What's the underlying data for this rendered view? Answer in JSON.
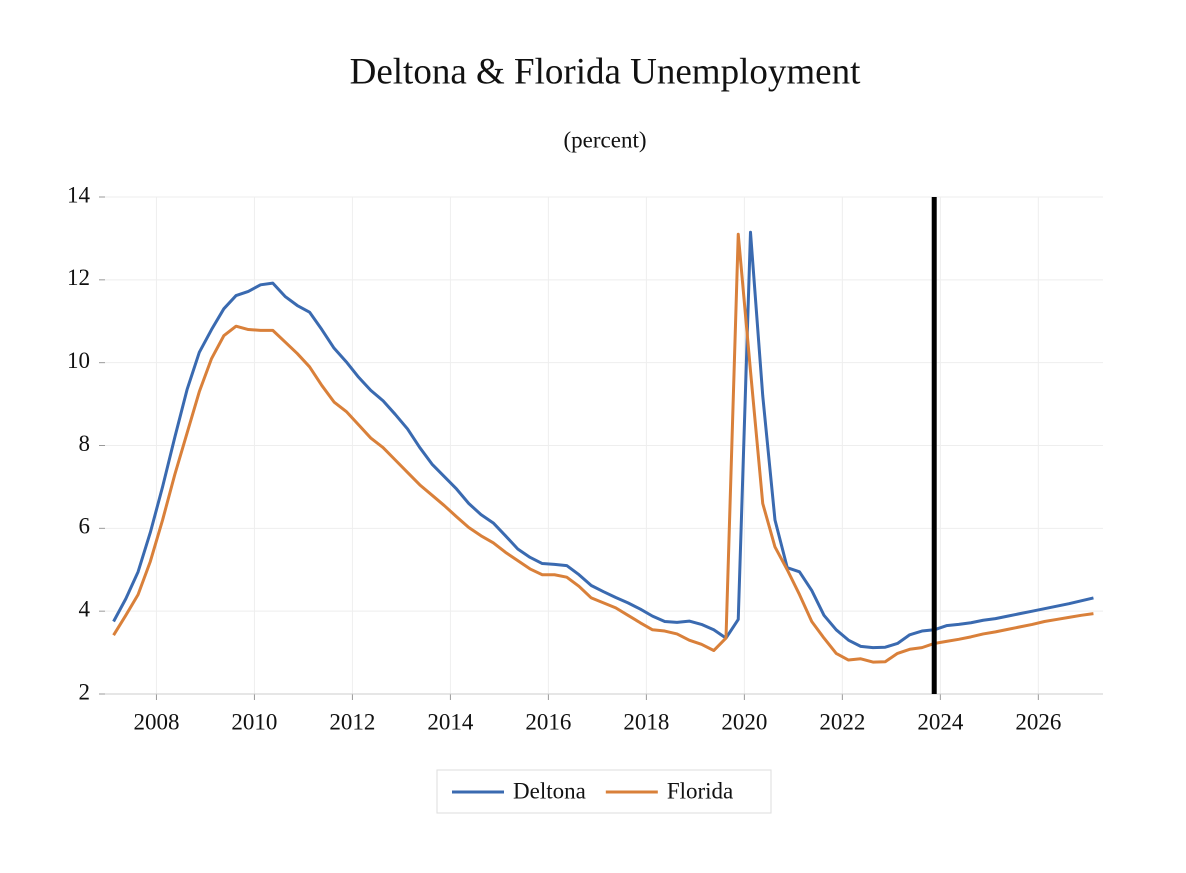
{
  "chart_data": {
    "type": "line",
    "title": "Deltona & Florida Unemployment",
    "subtitle": "(percent)",
    "x": [
      2007.625,
      2007.875,
      2008.125,
      2008.375,
      2008.625,
      2008.875,
      2009.125,
      2009.375,
      2009.625,
      2009.875,
      2010.125,
      2010.375,
      2010.625,
      2010.875,
      2011.125,
      2011.375,
      2011.625,
      2011.875,
      2012.125,
      2012.375,
      2012.625,
      2012.875,
      2013.125,
      2013.375,
      2013.625,
      2013.875,
      2014.125,
      2014.375,
      2014.625,
      2014.875,
      2015.125,
      2015.375,
      2015.625,
      2015.875,
      2016.125,
      2016.375,
      2016.625,
      2016.875,
      2017.125,
      2017.375,
      2017.625,
      2017.875,
      2018.125,
      2018.375,
      2018.625,
      2018.875,
      2019.125,
      2019.375,
      2019.625,
      2019.875,
      2020.125,
      2020.375,
      2020.625,
      2020.875,
      2021.125,
      2021.375,
      2021.625,
      2021.875,
      2022.125,
      2022.375,
      2022.625,
      2022.875,
      2023.125,
      2023.375,
      2023.625,
      2023.875,
      2024.125,
      2024.375,
      2024.625,
      2024.875,
      2025.125,
      2025.375,
      2025.625,
      2025.875,
      2026.125,
      2026.375,
      2026.625,
      2026.875,
      2027.125,
      2027.375,
      2027.625
    ],
    "series": [
      {
        "name": "Deltona",
        "color": "#3a6ab0",
        "values": [
          3.75,
          4.3,
          4.95,
          5.9,
          7.0,
          8.2,
          9.35,
          10.25,
          10.8,
          11.3,
          11.62,
          11.72,
          11.88,
          11.92,
          11.6,
          11.38,
          11.22,
          10.8,
          10.35,
          10.02,
          9.65,
          9.33,
          9.08,
          8.75,
          8.4,
          7.95,
          7.55,
          7.25,
          6.95,
          6.6,
          6.33,
          6.13,
          5.82,
          5.5,
          5.3,
          5.15,
          5.13,
          5.1,
          4.88,
          4.62,
          4.47,
          4.33,
          4.2,
          4.05,
          3.88,
          3.75,
          3.73,
          3.76,
          3.68,
          3.55,
          3.35,
          3.8,
          13.15,
          9.2,
          6.2,
          5.05,
          4.95,
          4.5,
          3.9,
          3.55,
          3.3,
          3.15,
          3.12,
          3.13,
          3.22,
          3.43,
          3.52,
          3.55,
          3.65,
          3.68,
          3.72,
          3.78,
          3.82,
          3.88,
          3.94,
          4.0,
          4.06,
          4.12,
          4.18,
          4.25,
          4.32
        ]
      },
      {
        "name": "Florida",
        "color": "#d9803a",
        "values": [
          3.42,
          3.9,
          4.4,
          5.2,
          6.2,
          7.3,
          8.3,
          9.3,
          10.1,
          10.65,
          10.88,
          10.8,
          10.78,
          10.78,
          10.5,
          10.22,
          9.9,
          9.45,
          9.05,
          8.82,
          8.5,
          8.18,
          7.95,
          7.65,
          7.35,
          7.05,
          6.8,
          6.55,
          6.28,
          6.02,
          5.82,
          5.65,
          5.42,
          5.22,
          5.02,
          4.88,
          4.88,
          4.82,
          4.6,
          4.32,
          4.2,
          4.08,
          3.9,
          3.72,
          3.55,
          3.52,
          3.45,
          3.3,
          3.2,
          3.05,
          3.35,
          13.1,
          9.8,
          6.6,
          5.55,
          5.0,
          4.4,
          3.75,
          3.35,
          2.98,
          2.82,
          2.85,
          2.77,
          2.78,
          2.98,
          3.08,
          3.12,
          3.22,
          3.27,
          3.32,
          3.38,
          3.45,
          3.5,
          3.56,
          3.62,
          3.68,
          3.75,
          3.8,
          3.85,
          3.9,
          3.94
        ]
      }
    ],
    "forecast_line_x": 2024.375,
    "xlim": [
      2007.45,
      2027.82
    ],
    "xticks": [
      {
        "value": 2008.5,
        "label": "2008"
      },
      {
        "value": 2010.5,
        "label": "2010"
      },
      {
        "value": 2012.5,
        "label": "2012"
      },
      {
        "value": 2014.5,
        "label": "2014"
      },
      {
        "value": 2016.5,
        "label": "2016"
      },
      {
        "value": 2018.5,
        "label": "2018"
      },
      {
        "value": 2020.5,
        "label": "2020"
      },
      {
        "value": 2022.5,
        "label": "2022"
      },
      {
        "value": 2024.5,
        "label": "2024"
      },
      {
        "value": 2026.5,
        "label": "2026"
      }
    ],
    "ylim": [
      2,
      14
    ],
    "yticks": [
      2,
      4,
      6,
      8,
      10,
      12,
      14
    ],
    "grid": true,
    "legend": "bottom"
  }
}
